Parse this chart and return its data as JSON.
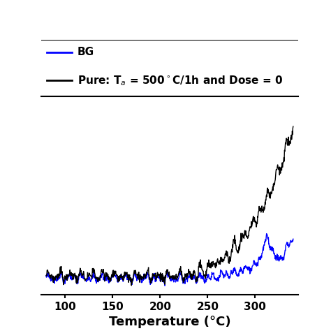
{
  "xlabel": "Temperature (°C)",
  "xlim": [
    75,
    345
  ],
  "bg_color": "#ffffff",
  "xticks": [
    100,
    150,
    200,
    250,
    300
  ],
  "xlabel_fontsize": 13,
  "tick_labelsize": 11,
  "legend_fontsize": 11
}
